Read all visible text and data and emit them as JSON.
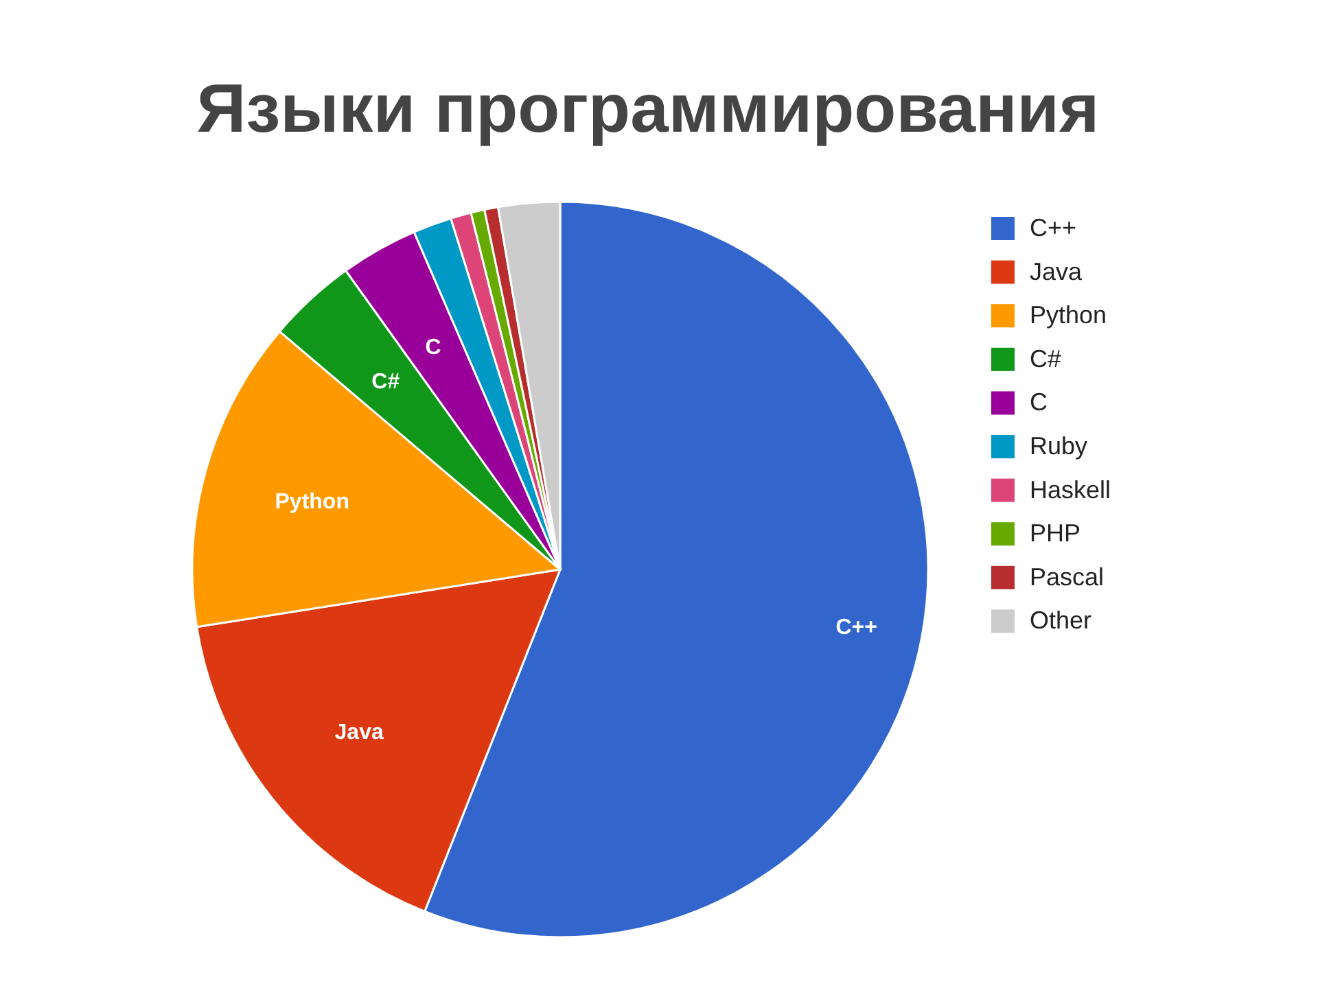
{
  "chart_data": {
    "type": "pie",
    "title": "Языки программирования",
    "categories": [
      "C++",
      "Java",
      "Python",
      "C#",
      "C",
      "Ruby",
      "Haskell",
      "PHP",
      "Pascal",
      "Other"
    ],
    "values": [
      56,
      16.5,
      13.7,
      3.9,
      3.4,
      1.7,
      0.9,
      0.6,
      0.6,
      2.7
    ],
    "colors": [
      "#3366cc",
      "#dc3912",
      "#ff9900",
      "#109618",
      "#990099",
      "#0099c6",
      "#dd4477",
      "#66aa00",
      "#b82e2e",
      "#cccccc"
    ],
    "legend": "right"
  }
}
